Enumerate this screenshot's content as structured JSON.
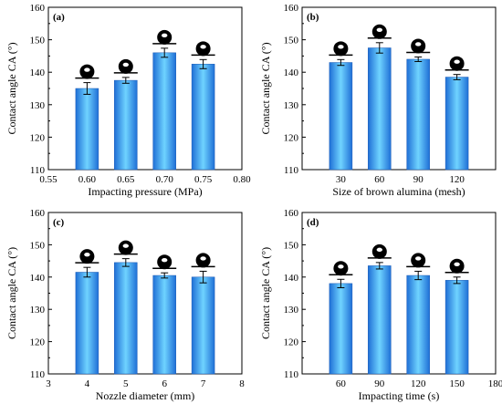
{
  "colors": {
    "bar_dark": "#1f6fd6",
    "bar_light": "#6fd3ff",
    "axis": "#000000",
    "droplet": "#000000"
  },
  "icons": {
    "droplet": "water-droplet-icon"
  },
  "chart_data": [
    {
      "type": "bar",
      "panel_label": "(a)",
      "xlabel": "Impacting pressure (MPa)",
      "ylabel": "Contact angle CA (°)",
      "xlim": [
        0.55,
        0.8
      ],
      "ylim": [
        110,
        160
      ],
      "xticks": [
        "0.55",
        "0.60",
        "0.65",
        "0.70",
        "0.75",
        "0.80"
      ],
      "yticks": [
        "110",
        "120",
        "130",
        "140",
        "150",
        "160"
      ],
      "x": [
        0.6,
        0.65,
        0.7,
        0.75
      ],
      "values": [
        135.0,
        137.5,
        146.0,
        142.5
      ],
      "errors": [
        1.8,
        0.9,
        1.4,
        1.4
      ]
    },
    {
      "type": "bar",
      "panel_label": "(b)",
      "xlabel": "Size of brown alumina (mesh)",
      "ylabel": "Contact angle CA (°)",
      "xlim": [
        0,
        150
      ],
      "ylim": [
        110,
        160
      ],
      "xticks": [
        "30",
        "60",
        "90",
        "120"
      ],
      "yticks": [
        "110",
        "120",
        "130",
        "140",
        "150",
        "160"
      ],
      "x": [
        30,
        60,
        90,
        120
      ],
      "values": [
        143.0,
        147.5,
        144.0,
        138.5
      ],
      "errors": [
        0.9,
        1.6,
        0.7,
        0.8
      ]
    },
    {
      "type": "bar",
      "panel_label": "(c)",
      "xlabel": "Nozzle diameter (mm)",
      "ylabel": "Contact angle CA (°)",
      "xlim": [
        3,
        8
      ],
      "ylim": [
        110,
        160
      ],
      "xticks": [
        "3",
        "4",
        "5",
        "6",
        "7",
        "8"
      ],
      "yticks": [
        "110",
        "120",
        "130",
        "140",
        "150",
        "160"
      ],
      "x": [
        4,
        5,
        6,
        7
      ],
      "values": [
        141.5,
        144.5,
        140.5,
        140.0
      ],
      "errors": [
        1.5,
        1.2,
        0.8,
        1.8
      ]
    },
    {
      "type": "bar",
      "panel_label": "(d)",
      "xlabel": "Impacting time (s)",
      "ylabel": "Contact angle CA (°)",
      "xlim": [
        30,
        180
      ],
      "ylim": [
        110,
        160
      ],
      "xticks": [
        "60",
        "90",
        "120",
        "150",
        "180"
      ],
      "yticks": [
        "110",
        "120",
        "130",
        "140",
        "150",
        "160"
      ],
      "x": [
        60,
        90,
        120,
        150
      ],
      "values": [
        138.0,
        143.5,
        140.5,
        139.0
      ],
      "errors": [
        1.3,
        1.0,
        1.3,
        1.0
      ]
    }
  ]
}
